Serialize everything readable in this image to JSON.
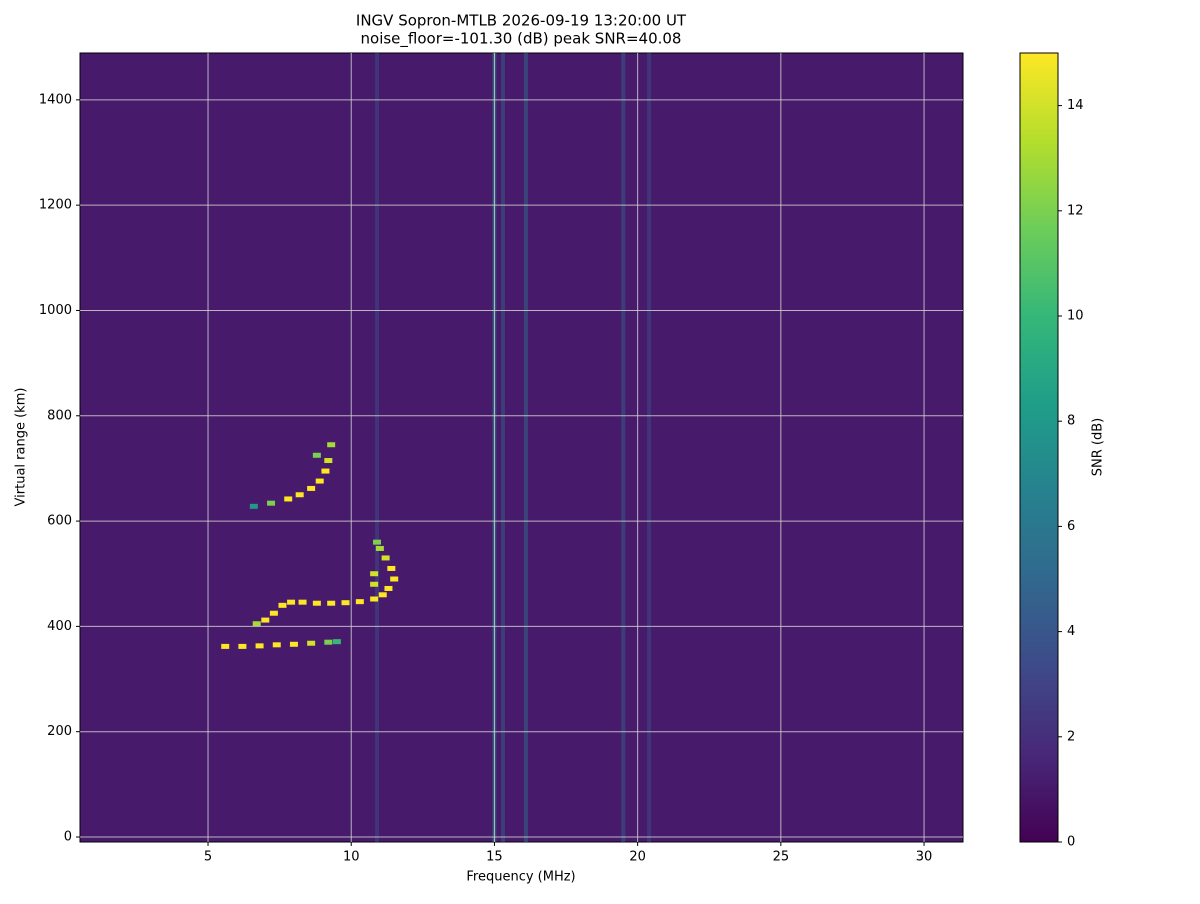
{
  "chart_data": {
    "type": "heatmap",
    "title": "INGV Sopron-MTLB 2026-09-19 13:20:00  UT",
    "subtitle": "noise_floor=-101.30 (dB) peak SNR=40.08",
    "x_label": "Frequency (MHz)",
    "y_label": "Virtual range (km)",
    "xlim": [
      0.53,
      31.36
    ],
    "ylim": [
      -9.5,
      1489
    ],
    "xticks": [
      5,
      10,
      15,
      20,
      25,
      30
    ],
    "yticks": [
      0,
      200,
      400,
      600,
      800,
      1000,
      1200,
      1400
    ],
    "grid": true,
    "colormap": "viridis",
    "colorbar": {
      "label": "SNR (dB)",
      "lim": [
        0,
        15
      ],
      "ticks": [
        0,
        2,
        4,
        6,
        8,
        10,
        12,
        14
      ]
    },
    "traces": [
      {
        "x": [
          5.6,
          6.2,
          6.8,
          7.4,
          8.0,
          8.6,
          9.2,
          9.5
        ],
        "y": [
          362,
          362,
          363,
          365,
          366,
          368,
          370,
          371
        ],
        "values": [
          15,
          15,
          15,
          15,
          15,
          14,
          12,
          10
        ]
      },
      {
        "x": [
          6.7,
          7.0,
          7.3,
          7.6,
          7.9,
          8.3,
          8.8,
          9.3,
          9.8,
          10.3,
          10.8,
          11.1,
          11.3,
          11.5,
          11.4,
          11.2,
          11.0,
          10.9,
          10.8,
          10.8
        ],
        "y": [
          405,
          412,
          425,
          440,
          446,
          446,
          444,
          444,
          445,
          447,
          452,
          460,
          472,
          490,
          510,
          530,
          548,
          560,
          500,
          480
        ],
        "values": [
          13,
          15,
          15,
          15,
          15,
          15,
          15,
          15,
          15,
          15,
          15,
          15,
          15,
          15,
          15,
          14,
          13,
          12,
          14,
          14
        ]
      },
      {
        "x": [
          6.6,
          7.2,
          7.8,
          8.2,
          8.6,
          8.9,
          9.1,
          9.2,
          9.3,
          8.8
        ],
        "y": [
          628,
          634,
          642,
          650,
          662,
          676,
          695,
          715,
          745,
          725
        ],
        "values": [
          8,
          12,
          15,
          15,
          15,
          15,
          15,
          14,
          13,
          12
        ]
      }
    ],
    "stripes": {
      "x": [
        15.0,
        16.1,
        19.5,
        20.4,
        10.9,
        15.3
      ],
      "values": [
        8,
        6,
        5,
        4,
        4,
        5
      ]
    }
  }
}
